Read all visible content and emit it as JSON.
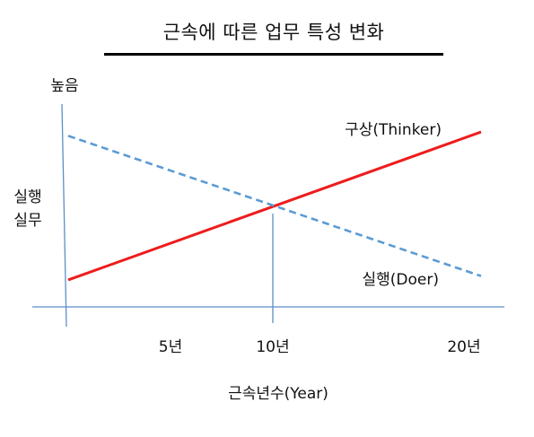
{
  "title": "근속에  따른 업무 특성 변화",
  "y_top_label": "높음",
  "ylabel_lines": [
    "실행",
    "실무"
  ],
  "xlabel": "근속년수(Year)",
  "xtick_labels": [
    "5년",
    "10년",
    "20년"
  ],
  "colors": {
    "thinker": "#ee1c1c",
    "doer": "#5b9bd5",
    "axis": "#5b8fc8",
    "text": "#111111"
  },
  "chart_data": {
    "type": "line",
    "title": "근속에  따른 업무 특성 변화",
    "xlabel": "근속년수(Year)",
    "ylabel": "실행 실무",
    "y_top_label": "높음",
    "xticks": [
      5,
      10,
      20
    ],
    "xtick_labels": [
      "5년",
      "10년",
      "20년"
    ],
    "xlim": [
      0,
      20
    ],
    "ylim": [
      0,
      1
    ],
    "grid": false,
    "series": [
      {
        "name": "구상(Thinker)",
        "style": "solid",
        "color": "#ee1c1c",
        "x": [
          0,
          20
        ],
        "y": [
          0.12,
          0.88
        ]
      },
      {
        "name": "실행(Doer)",
        "style": "dashed",
        "color": "#5b9bd5",
        "x": [
          0,
          20
        ],
        "y": [
          0.86,
          0.14
        ]
      }
    ],
    "annotations": [
      {
        "type": "vline",
        "x": 10,
        "note": "crossover"
      }
    ]
  }
}
